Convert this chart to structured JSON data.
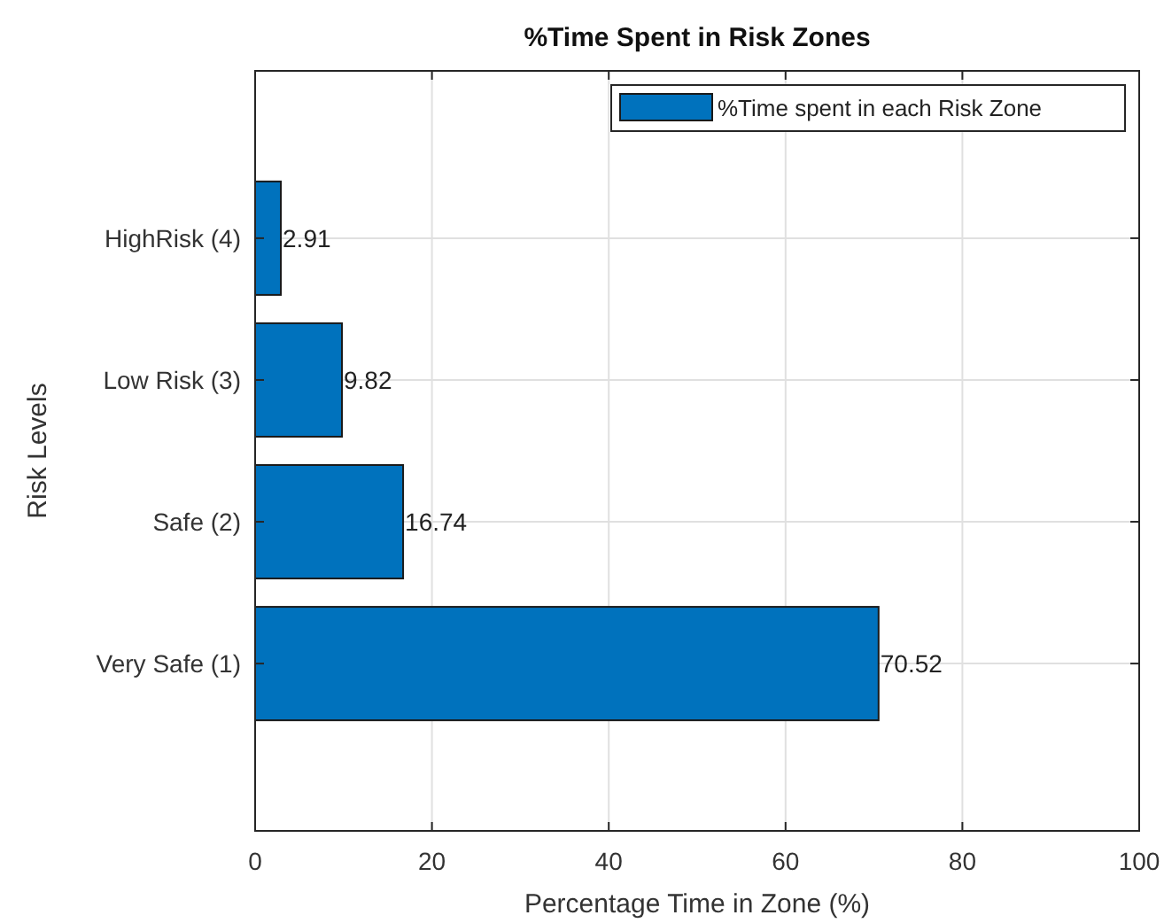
{
  "chart_data": {
    "type": "bar",
    "orientation": "horizontal",
    "title": "%Time Spent in Risk Zones",
    "xlabel": "Percentage Time in Zone (%)",
    "ylabel": "Risk Levels",
    "categories": [
      "HighRisk (4)",
      "Low Risk (3)",
      "Safe (2)",
      "Very Safe (1)"
    ],
    "series": [
      {
        "name": "%Time spent in each Risk Zone",
        "color": "#0072bd",
        "values": [
          2.91,
          9.82,
          16.74,
          70.52
        ]
      }
    ],
    "xlim": [
      0,
      100
    ],
    "xticks": [
      0,
      20,
      40,
      60,
      80,
      100
    ],
    "grid": true,
    "legend": "top right",
    "data_labels": true
  }
}
